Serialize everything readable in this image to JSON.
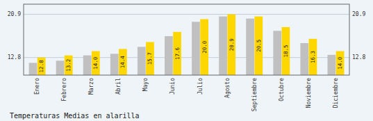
{
  "chart_data": {
    "type": "bar",
    "title": "Temperaturas Medias en alarilla",
    "categories": [
      "Enero",
      "Febrero",
      "Marzo",
      "Abril",
      "Mayo",
      "Junio",
      "Julio",
      "Agosto",
      "Septiembre",
      "Octubre",
      "Noviembre",
      "Diciembre"
    ],
    "series": [
      {
        "color": "#C0C0C0",
        "values": [
          11.8,
          12.2,
          13.2,
          13.5,
          14.8,
          16.8,
          19.5,
          20.5,
          20.1,
          17.8,
          15.5,
          13.3
        ]
      },
      {
        "color": "#FFD700",
        "values": [
          12.8,
          13.2,
          14.0,
          14.4,
          15.7,
          17.6,
          20.0,
          20.9,
          20.5,
          18.5,
          16.3,
          14.0
        ],
        "value_labels": [
          "12.8",
          "13.2",
          "14.0",
          "14.4",
          "15.7",
          "17.6",
          "20.0",
          "20.9",
          "20.5",
          "18.5",
          "16.3",
          "14.0"
        ],
        "data_labels": true
      }
    ],
    "ylim": [
      9.5,
      22.8
    ],
    "yticks": [
      12.8,
      20.9
    ],
    "y2lim": [
      9.5,
      22.8
    ],
    "y2ticks": [
      12.8,
      20.9
    ],
    "grid": true
  }
}
